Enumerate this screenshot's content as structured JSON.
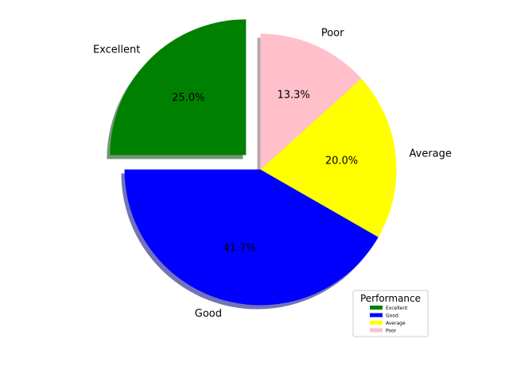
{
  "chart_data": {
    "type": "pie",
    "categories": [
      "Excellent",
      "Good",
      "Average",
      "Poor"
    ],
    "values": [
      25.0,
      41.7,
      20.0,
      13.3
    ],
    "percent_labels": [
      "25.0%",
      "41.7%",
      "20.0%",
      "13.3%"
    ],
    "colors": [
      "#008000",
      "#0000ff",
      "#ffff00",
      "#ffc0cb"
    ],
    "exploded": [
      "Excellent"
    ],
    "shadow": true,
    "start_angle_deg": 90,
    "legend": {
      "title": "Performance",
      "placement": "lower-right",
      "entries": [
        "Excellent",
        "Good",
        "Average",
        "Poor"
      ]
    }
  }
}
